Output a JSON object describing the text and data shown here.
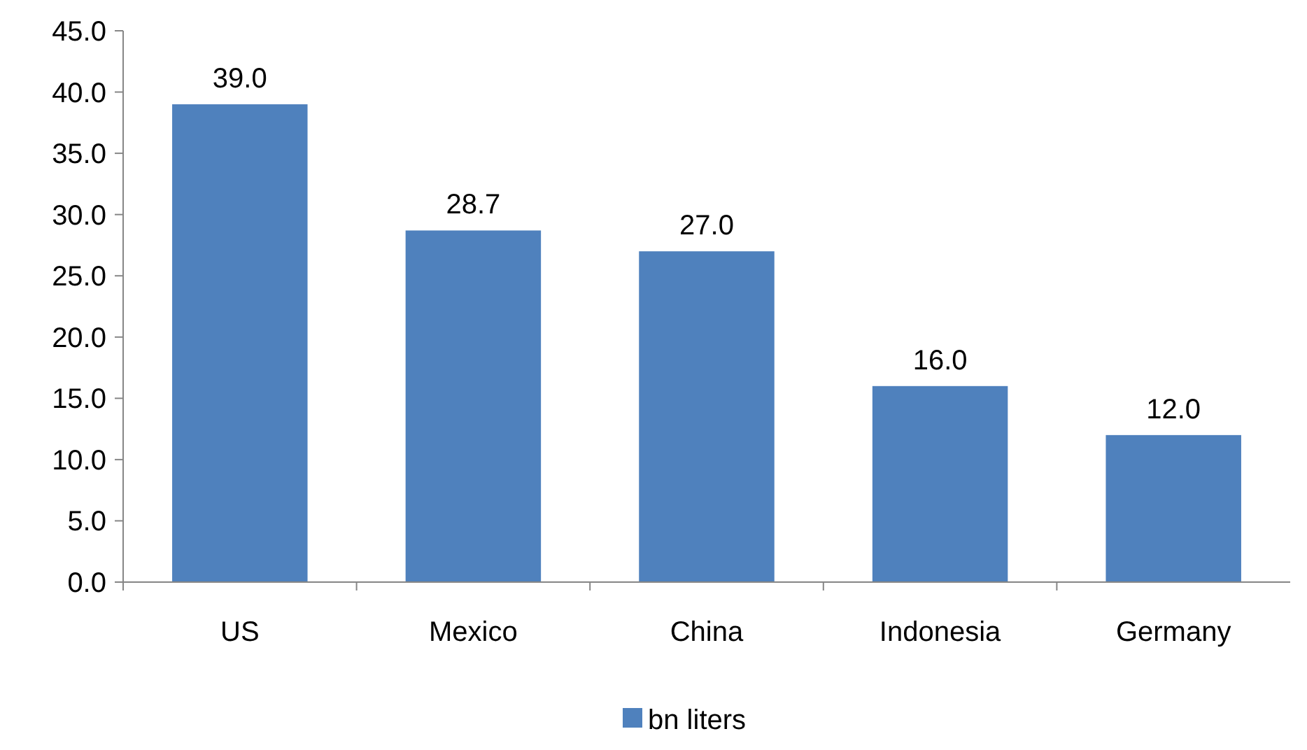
{
  "chart_data": {
    "type": "bar",
    "categories": [
      "US",
      "Mexico",
      "China",
      "Indonesia",
      "Germany"
    ],
    "series": [
      {
        "name": "bn liters",
        "color": "#4f81bd",
        "values": [
          39.0,
          28.7,
          27.0,
          16.0,
          12.0
        ]
      }
    ],
    "ylim": [
      0,
      45
    ],
    "yticks": [
      {
        "value": 0,
        "label": "0.0"
      },
      {
        "value": 5,
        "label": "5.0"
      },
      {
        "value": 10,
        "label": "10.0"
      },
      {
        "value": 15,
        "label": "15.0"
      },
      {
        "value": 20,
        "label": "20.0"
      },
      {
        "value": 25,
        "label": "25.0"
      },
      {
        "value": 30,
        "label": "30.0"
      },
      {
        "value": 35,
        "label": "35.0"
      },
      {
        "value": 40,
        "label": "40.0"
      },
      {
        "value": 45,
        "label": "45.0"
      }
    ],
    "value_labels": [
      "39.0",
      "28.7",
      "27.0",
      "16.0",
      "12.0"
    ],
    "grid": false,
    "legend": "bottom"
  }
}
